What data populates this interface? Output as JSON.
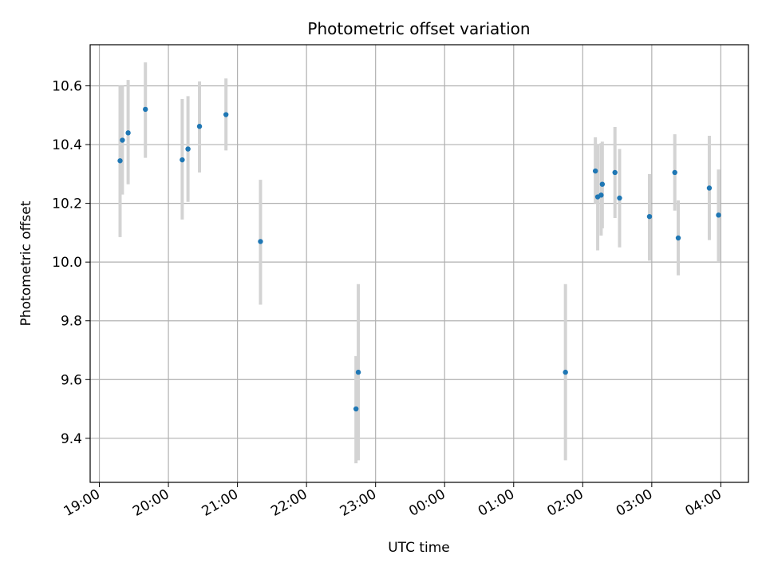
{
  "colors": {
    "point": "#1f77b4",
    "errorbar": "#d3d3d3",
    "grid": "#b0b0b0"
  },
  "chart_data": {
    "type": "scatter",
    "title": "Photometric offset variation",
    "xlabel": "UTC time",
    "ylabel": "Photometric offset",
    "grid": true,
    "x_unit": "hours after 19:00 UTC",
    "xlim": [
      "18:52",
      "04:24"
    ],
    "ylim": [
      9.25,
      10.74
    ],
    "x_ticks": [
      "19:00",
      "20:00",
      "21:00",
      "22:00",
      "23:00",
      "00:00",
      "01:00",
      "02:00",
      "03:00",
      "04:00"
    ],
    "y_ticks": [
      "9.4",
      "9.6",
      "9.8",
      "10.0",
      "10.2",
      "10.4",
      "10.6"
    ],
    "series": [
      {
        "points": [
          {
            "t": "19:18",
            "y": 10.345,
            "lo": 10.085,
            "hi": 10.6
          },
          {
            "t": "19:20",
            "y": 10.415,
            "lo": 10.23,
            "hi": 10.6
          },
          {
            "t": "19:25",
            "y": 10.44,
            "lo": 10.265,
            "hi": 10.62
          },
          {
            "t": "19:40",
            "y": 10.52,
            "lo": 10.355,
            "hi": 10.68
          },
          {
            "t": "20:12",
            "y": 10.348,
            "lo": 10.145,
            "hi": 10.555
          },
          {
            "t": "20:17",
            "y": 10.385,
            "lo": 10.205,
            "hi": 10.565
          },
          {
            "t": "20:27",
            "y": 10.462,
            "lo": 10.305,
            "hi": 10.615
          },
          {
            "t": "20:50",
            "y": 10.502,
            "lo": 10.38,
            "hi": 10.625
          },
          {
            "t": "21:20",
            "y": 10.07,
            "lo": 9.855,
            "hi": 10.28
          },
          {
            "t": "22:43",
            "y": 9.5,
            "lo": 9.315,
            "hi": 9.68
          },
          {
            "t": "22:45",
            "y": 9.625,
            "lo": 9.325,
            "hi": 9.925
          },
          {
            "t": "01:45",
            "y": 9.625,
            "lo": 9.325,
            "hi": 9.925
          },
          {
            "t": "02:11",
            "y": 10.31,
            "lo": 10.2,
            "hi": 10.425
          },
          {
            "t": "02:13",
            "y": 10.222,
            "lo": 10.04,
            "hi": 10.4
          },
          {
            "t": "02:16",
            "y": 10.228,
            "lo": 10.09,
            "hi": 10.405
          },
          {
            "t": "02:17",
            "y": 10.265,
            "lo": 10.115,
            "hi": 10.41
          },
          {
            "t": "02:28",
            "y": 10.305,
            "lo": 10.15,
            "hi": 10.46
          },
          {
            "t": "02:32",
            "y": 10.218,
            "lo": 10.05,
            "hi": 10.385
          },
          {
            "t": "02:58",
            "y": 10.155,
            "lo": 10.005,
            "hi": 10.3
          },
          {
            "t": "03:20",
            "y": 10.305,
            "lo": 10.175,
            "hi": 10.435
          },
          {
            "t": "03:23",
            "y": 10.082,
            "lo": 9.955,
            "hi": 10.21
          },
          {
            "t": "03:50",
            "y": 10.252,
            "lo": 10.075,
            "hi": 10.43
          },
          {
            "t": "03:58",
            "y": 10.16,
            "lo": 10.0,
            "hi": 10.315
          }
        ]
      }
    ]
  }
}
